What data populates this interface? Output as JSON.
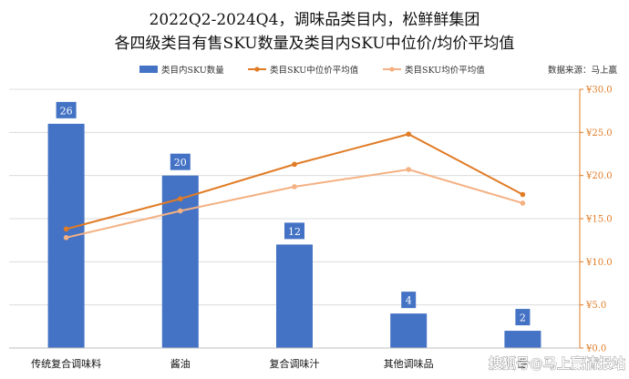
{
  "title_line1": "2022Q2-2024Q4，调味品类目内，松鲜鲜集团",
  "title_line2": "各四级类目有售SKU数量及类目内SKU中位价/均价平均值",
  "source": "数据来源：马上赢",
  "watermark": "搜狐号@马上赢情报站",
  "colors": {
    "bar": "#4472c4",
    "median": "#e07b25",
    "mean": "#f4b183",
    "axis": "#e07b25"
  },
  "chart_data": {
    "type": "bar",
    "categories": [
      "传统复合调味料",
      "酱油",
      "复合调味汁",
      "其他调味品",
      "醋"
    ],
    "series": [
      {
        "name": "类目内SKU数量",
        "kind": "bar",
        "axis": "left",
        "values": [
          26,
          20,
          12,
          4,
          2
        ]
      },
      {
        "name": "类目SKU中位价平均值",
        "kind": "line",
        "axis": "right",
        "values": [
          13.8,
          17.3,
          21.3,
          24.8,
          17.8
        ]
      },
      {
        "name": "类目SKU均价平均值",
        "kind": "line",
        "axis": "right",
        "values": [
          12.8,
          15.9,
          18.7,
          20.7,
          16.8
        ]
      }
    ],
    "left_ylim": [
      0,
      30
    ],
    "right_ylim": [
      0,
      30
    ],
    "right_ticks": [
      "¥0.0",
      "¥5.0",
      "¥10.0",
      "¥15.0",
      "¥20.0",
      "¥25.0",
      "¥30.0"
    ],
    "legend_position": "top",
    "grid": true
  }
}
